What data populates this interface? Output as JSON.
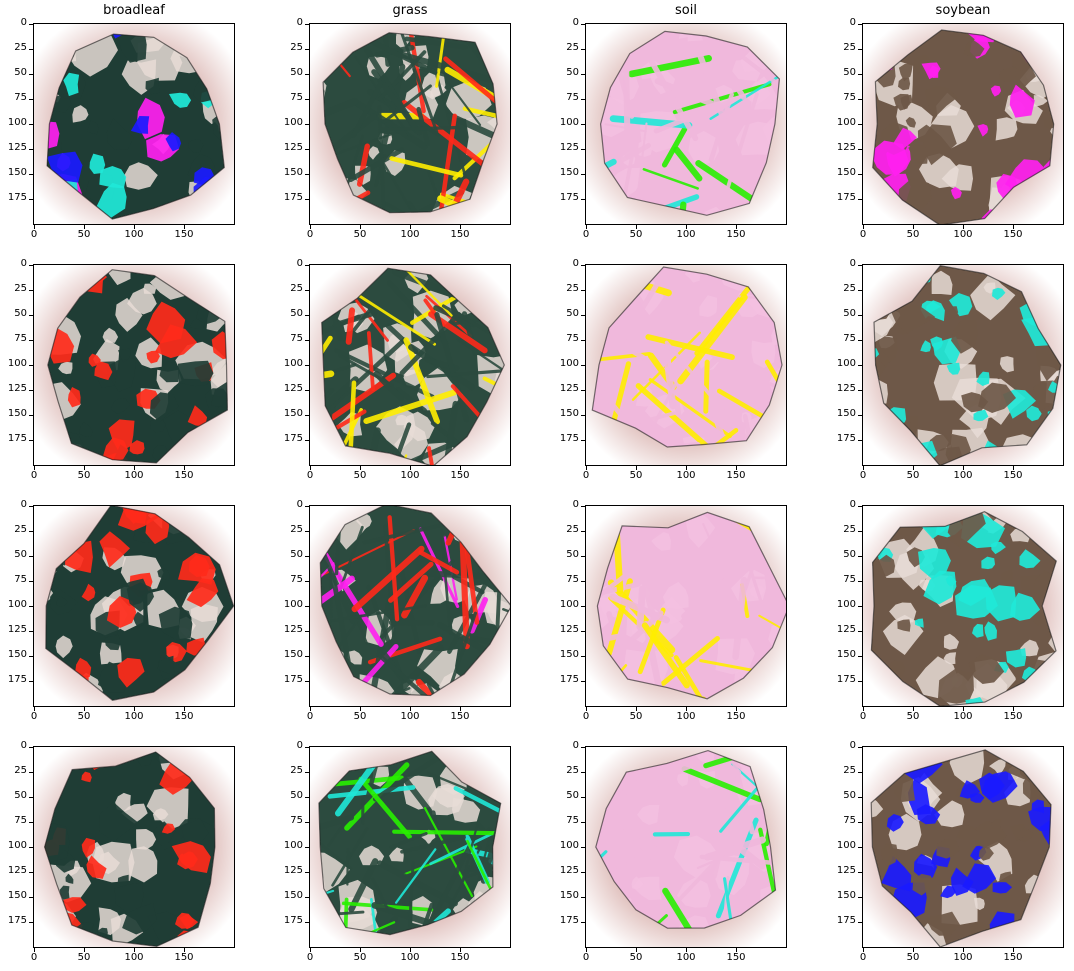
{
  "figure": {
    "column_titles": [
      "broadleaf",
      "grass",
      "soil",
      "soybean"
    ],
    "x_ticks": [
      "0",
      "50",
      "100",
      "150"
    ],
    "y_ticks": [
      "0",
      "25",
      "50",
      "75",
      "100",
      "125",
      "150",
      "175"
    ],
    "colors": {
      "halo": "#b9817e",
      "broadleaf_leaf": "#1f3d35",
      "grass_blade": "#2c4b3f",
      "soil_pink": "#f0b8dc",
      "soybean_leaf": "#6e5848",
      "red": "#ff2a1a",
      "yellow": "#ffee00",
      "magenta": "#ff20f0",
      "cyan": "#20e8d8",
      "blue": "#1a1aff",
      "green": "#28f000",
      "navy": "#2e3558"
    },
    "panels": [
      {
        "category": "broadleaf",
        "row": 0,
        "style": "leaves-white",
        "accent": [
          "#1a1aff",
          "#20e8d8",
          "#ff20f0"
        ]
      },
      {
        "category": "grass",
        "row": 0,
        "style": "grass-mixed",
        "accent": [
          "#ff2a1a",
          "#ffee00"
        ]
      },
      {
        "category": "soil",
        "row": 0,
        "style": "soil-pink",
        "accent": [
          "#28f000",
          "#20e8d8"
        ]
      },
      {
        "category": "soybean",
        "row": 0,
        "style": "soy-magenta",
        "accent": [
          "#ff20f0",
          "#ff2a1a"
        ]
      },
      {
        "category": "broadleaf",
        "row": 1,
        "style": "leaves-red",
        "accent": [
          "#ff2a1a"
        ]
      },
      {
        "category": "grass",
        "row": 1,
        "style": "grass-red",
        "accent": [
          "#ff2a1a",
          "#ffee00"
        ]
      },
      {
        "category": "soil",
        "row": 1,
        "style": "soil-navy",
        "accent": [
          "#ffee00"
        ]
      },
      {
        "category": "soybean",
        "row": 1,
        "style": "soy-cyan",
        "accent": [
          "#20e8d8",
          "#1a1aff"
        ]
      },
      {
        "category": "broadleaf",
        "row": 2,
        "style": "leaves-red-dense",
        "accent": [
          "#ff2a1a"
        ]
      },
      {
        "category": "grass",
        "row": 2,
        "style": "grass-magenta",
        "accent": [
          "#ff20f0",
          "#ff2a1a"
        ]
      },
      {
        "category": "soil",
        "row": 2,
        "style": "soil-yellow",
        "accent": [
          "#ffee00"
        ]
      },
      {
        "category": "soybean",
        "row": 2,
        "style": "soy-cyan-pink",
        "accent": [
          "#20e8d8",
          "#1a1aff"
        ]
      },
      {
        "category": "broadleaf",
        "row": 3,
        "style": "leaves-red-side",
        "accent": [
          "#ff2a1a"
        ]
      },
      {
        "category": "grass",
        "row": 3,
        "style": "grass-brown",
        "accent": [
          "#28f000",
          "#20e8d8"
        ]
      },
      {
        "category": "soil",
        "row": 3,
        "style": "soil-green",
        "accent": [
          "#28f000",
          "#20e8d8"
        ]
      },
      {
        "category": "soybean",
        "row": 3,
        "style": "soy-blue",
        "accent": [
          "#1a1aff",
          "#20e8d8"
        ]
      }
    ]
  }
}
